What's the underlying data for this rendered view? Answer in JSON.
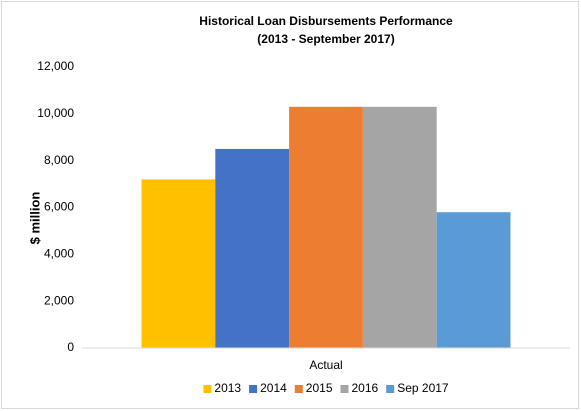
{
  "chart_data": {
    "type": "bar",
    "title": "Historical Loan Disbursements Performance",
    "subtitle": "(2013 - September 2017)",
    "y_label": "$ million",
    "categories": [
      "Actual"
    ],
    "series": [
      {
        "name": "2013",
        "color": "#ffc000",
        "values": [
          7200
        ]
      },
      {
        "name": "2014",
        "color": "#4472c4",
        "values": [
          8500
        ]
      },
      {
        "name": "2015",
        "color": "#ed7d31",
        "values": [
          10300
        ]
      },
      {
        "name": "2016",
        "color": "#a5a5a5",
        "values": [
          10300
        ]
      },
      {
        "name": "Sep 2017",
        "color": "#5b9bd5",
        "values": [
          5800
        ]
      }
    ],
    "ylim": [
      0,
      12000
    ],
    "yticks": [
      0,
      {
        "value": 2000,
        "label": "2,000"
      },
      {
        "value": 4000,
        "label": "4,000"
      },
      {
        "value": 6000,
        "label": "6,000"
      },
      {
        "value": 8000,
        "label": "8,000"
      },
      {
        "value": 10000,
        "label": "10,000"
      },
      {
        "value": 12000,
        "label": "12,000"
      }
    ],
    "grid": false,
    "legend": "bottom"
  }
}
